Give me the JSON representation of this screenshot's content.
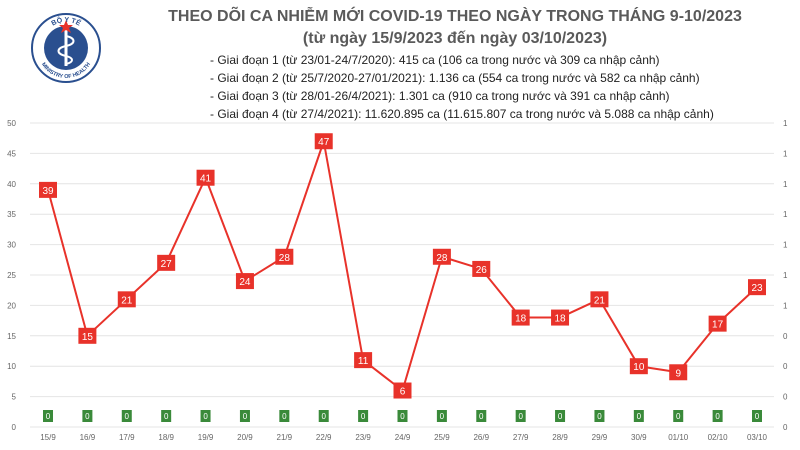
{
  "header": {
    "logo_text_top": "BỘ Y TẾ",
    "logo_text_bottom": "MINISTRY OF HEALTH",
    "title_line1": "THEO DÕI CA NHIỄM MỚI COVID-19 THEO NGÀY TRONG THÁNG 9-10/2023",
    "title_line2": "(từ ngày 15/9/2023 đến ngày 03/10/2023)"
  },
  "notes": [
    "- Giai đoạn 1 (từ 23/01-24/7/2020): 415 ca (106 ca trong nước và 309 ca nhập cảnh)",
    "- Giai đoạn 2 (từ 25/7/2020-27/01/2021): 1.136 ca (554 ca trong nước và 582 ca nhập cảnh)",
    "- Giai đoạn 3 (từ 28/01-26/4/2021): 1.301 ca (910 ca trong nước và 391 ca nhập cảnh)",
    "- Giai đoạn 4 (từ 27/4/2021): 11.620.895 ca (11.615.807 ca trong nước và 5.088 ca nhập cảnh)"
  ],
  "colors": {
    "line": "#e8322a",
    "label_box": "#e8322a",
    "zero_box": "#3a8a3a",
    "grid": "#e4e4e4",
    "title": "#5a5a5a"
  },
  "chart_data": {
    "type": "line",
    "categories": [
      "15/9",
      "16/9",
      "17/9",
      "18/9",
      "19/9",
      "20/9",
      "21/9",
      "22/9",
      "23/9",
      "24/9",
      "25/9",
      "26/9",
      "27/9",
      "28/9",
      "29/9",
      "30/9",
      "01/10",
      "02/10",
      "03/10"
    ],
    "series": [
      {
        "values": [
          39,
          15,
          21,
          27,
          41,
          24,
          28,
          47,
          11,
          6,
          28,
          26,
          18,
          18,
          21,
          10,
          9,
          17,
          23
        ]
      }
    ],
    "secondary_series": {
      "values": [
        0,
        0,
        0,
        0,
        0,
        0,
        0,
        0,
        0,
        0,
        0,
        0,
        0,
        0,
        0,
        0,
        0,
        0,
        0
      ],
      "labels": [
        "0",
        "0",
        "0",
        "0",
        "0",
        "0",
        "0",
        "0",
        "0",
        "0",
        "0",
        "0",
        "0",
        "0",
        "0",
        "0",
        "0",
        "0",
        "0"
      ]
    },
    "ylim": [
      0,
      50
    ],
    "yticks": [
      "0",
      "5",
      "10",
      "15",
      "20",
      "25",
      "30",
      "35",
      "40",
      "45",
      "50"
    ],
    "y2ticks": [
      "0",
      "0",
      "0",
      "0",
      "1",
      "1",
      "1",
      "1",
      "1",
      "1",
      "1"
    ],
    "grid": true
  }
}
